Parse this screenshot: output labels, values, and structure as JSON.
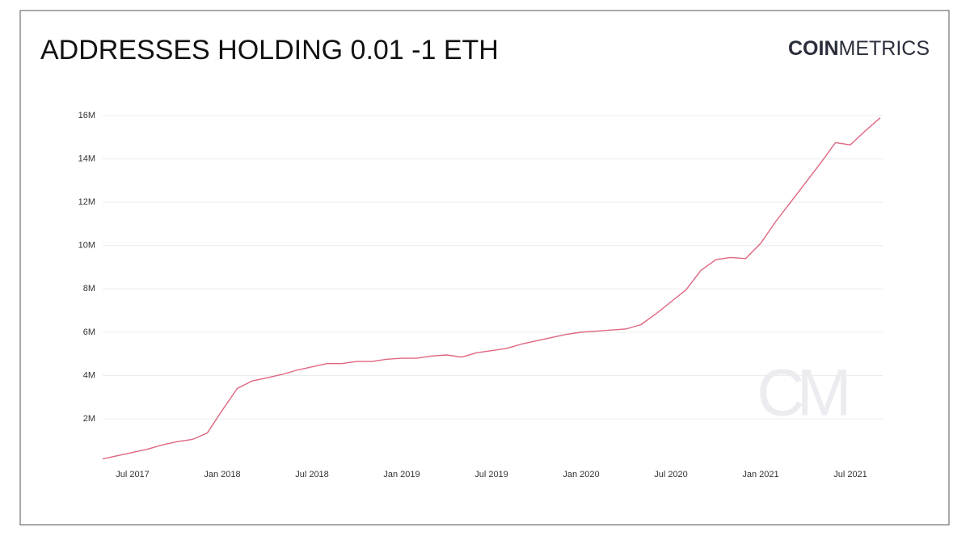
{
  "chart_data": {
    "type": "line",
    "title": "ADDRESSES HOLDING 0.01 -1 ETH",
    "logo": {
      "bold": "COIN",
      "regular": "METRICS"
    },
    "watermark": "CM",
    "x": [
      "2017-05",
      "2017-06",
      "2017-07",
      "2017-08",
      "2017-09",
      "2017-10",
      "2017-11",
      "2017-12",
      "2018-01",
      "2018-02",
      "2018-03",
      "2018-04",
      "2018-05",
      "2018-06",
      "2018-07",
      "2018-08",
      "2018-09",
      "2018-10",
      "2018-11",
      "2018-12",
      "2019-01",
      "2019-02",
      "2019-03",
      "2019-04",
      "2019-05",
      "2019-06",
      "2019-07",
      "2019-08",
      "2019-09",
      "2019-10",
      "2019-11",
      "2019-12",
      "2020-01",
      "2020-02",
      "2020-03",
      "2020-04",
      "2020-05",
      "2020-06",
      "2020-07",
      "2020-08",
      "2020-09",
      "2020-10",
      "2020-11",
      "2020-12",
      "2021-01",
      "2021-02",
      "2021-03",
      "2021-04",
      "2021-05",
      "2021-06",
      "2021-07",
      "2021-08",
      "2021-09"
    ],
    "series": [
      {
        "name": "Addresses holding 0.01-1 ETH",
        "color": "#df6680",
        "values": [
          150000,
          300000,
          450000,
          600000,
          800000,
          950000,
          1050000,
          1350000,
          2400000,
          3400000,
          3750000,
          3900000,
          4050000,
          4250000,
          4400000,
          4550000,
          4550000,
          4650000,
          4650000,
          4750000,
          4800000,
          4800000,
          4900000,
          4950000,
          4850000,
          5050000,
          5150000,
          5250000,
          5450000,
          5600000,
          5750000,
          5900000,
          6000000,
          6050000,
          6100000,
          6150000,
          6350000,
          6850000,
          7400000,
          7950000,
          8850000,
          9350000,
          9450000,
          9400000,
          10100000,
          11100000,
          12000000,
          12900000,
          13800000,
          14750000,
          14650000,
          15300000,
          15900000
        ]
      }
    ],
    "xlim": [
      "2017-05",
      "2021-09"
    ],
    "xticks": [
      {
        "value": "2017-07",
        "label": "Jul 2017"
      },
      {
        "value": "2018-01",
        "label": "Jan 2018"
      },
      {
        "value": "2018-07",
        "label": "Jul 2018"
      },
      {
        "value": "2019-01",
        "label": "Jan 2019"
      },
      {
        "value": "2019-07",
        "label": "Jul 2019"
      },
      {
        "value": "2020-01",
        "label": "Jan 2020"
      },
      {
        "value": "2020-07",
        "label": "Jul 2020"
      },
      {
        "value": "2021-01",
        "label": "Jan 2021"
      },
      {
        "value": "2021-07",
        "label": "Jul 2021"
      }
    ],
    "ylim": [
      0,
      16000000
    ],
    "yticks": [
      {
        "value": 2000000,
        "label": "2M"
      },
      {
        "value": 4000000,
        "label": "4M"
      },
      {
        "value": 6000000,
        "label": "6M"
      },
      {
        "value": 8000000,
        "label": "8M"
      },
      {
        "value": 10000000,
        "label": "10M"
      },
      {
        "value": 12000000,
        "label": "12M"
      },
      {
        "value": 14000000,
        "label": "14M"
      },
      {
        "value": 16000000,
        "label": "16M"
      }
    ],
    "grid": true
  }
}
